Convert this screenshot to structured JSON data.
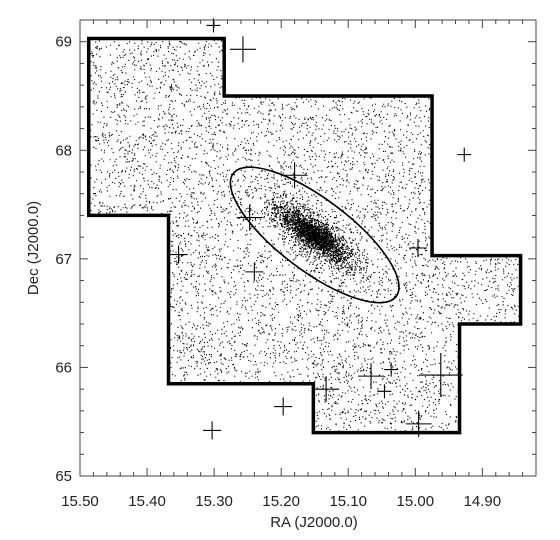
{
  "chart_data": {
    "type": "scatter",
    "xlabel": "RA (J2000.0)",
    "ylabel": "Dec (J2000.0)",
    "xlim": [
      15.5,
      14.82
    ],
    "ylim": [
      65.0,
      69.2
    ],
    "x_reversed": true,
    "x_ticks": [
      "15.50",
      "15.40",
      "15.30",
      "15.20",
      "15.10",
      "15.00",
      "14.90"
    ],
    "x_tick_values": [
      15.5,
      15.4,
      15.3,
      15.2,
      15.1,
      15.0,
      14.9
    ],
    "y_ticks": [
      "65",
      "66",
      "67",
      "68",
      "69"
    ],
    "y_tick_values": [
      65,
      66,
      67,
      68,
      69
    ],
    "grid": false,
    "footprint_polygon": [
      [
        15.487,
        69.03
      ],
      [
        15.285,
        69.03
      ],
      [
        15.285,
        68.5
      ],
      [
        14.975,
        68.5
      ],
      [
        14.975,
        67.03
      ],
      [
        14.843,
        67.03
      ],
      [
        14.843,
        66.4
      ],
      [
        14.934,
        66.4
      ],
      [
        14.934,
        65.4
      ],
      [
        15.152,
        65.4
      ],
      [
        15.152,
        65.85
      ],
      [
        15.368,
        65.85
      ],
      [
        15.368,
        67.4
      ],
      [
        15.487,
        67.4
      ]
    ],
    "ellipse": {
      "center": [
        15.15,
        67.22
      ],
      "semi_major_deg": 0.94,
      "semi_minor_deg": 0.33,
      "position_angle_deg": 37
    },
    "stars": [
      {
        "ra": 15.301,
        "dec": 69.15,
        "size": "small"
      },
      {
        "ra": 15.257,
        "dec": 68.93,
        "size": "large"
      },
      {
        "ra": 14.927,
        "dec": 67.96,
        "size": "small"
      },
      {
        "ra": 15.18,
        "dec": 67.77,
        "size": "large"
      },
      {
        "ra": 15.247,
        "dec": 67.38,
        "size": "large"
      },
      {
        "ra": 15.353,
        "dec": 67.04,
        "size": "medium"
      },
      {
        "ra": 14.996,
        "dec": 67.1,
        "size": "medium"
      },
      {
        "ra": 15.24,
        "dec": 66.88,
        "size": "medium"
      },
      {
        "ra": 15.066,
        "dec": 65.92,
        "size": "large"
      },
      {
        "ra": 15.036,
        "dec": 65.98,
        "size": "small"
      },
      {
        "ra": 15.046,
        "dec": 65.78,
        "size": "small"
      },
      {
        "ra": 14.962,
        "dec": 65.93,
        "size": "xlarge"
      },
      {
        "ra": 15.133,
        "dec": 65.8,
        "size": "large"
      },
      {
        "ra": 15.197,
        "dec": 65.64,
        "size": "medium"
      },
      {
        "ra": 15.303,
        "dec": 65.42,
        "size": "medium"
      },
      {
        "ra": 14.995,
        "dec": 65.48,
        "size": "large"
      }
    ],
    "point_cloud": {
      "field_points": 5200,
      "cluster_points": 2800,
      "cluster_center": [
        15.15,
        67.22
      ]
    }
  }
}
